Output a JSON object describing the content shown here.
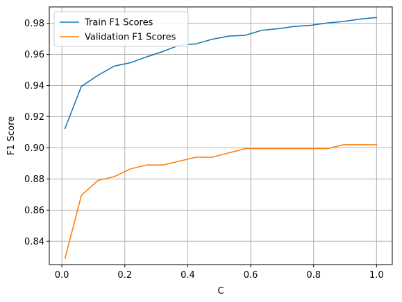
{
  "chart_data": {
    "type": "line",
    "title": "",
    "xlabel": "C",
    "ylabel": "F1 Score",
    "xlim": [
      -0.04,
      1.05
    ],
    "ylim": [
      0.825,
      0.9905
    ],
    "grid": true,
    "legend_position": "upper-left",
    "xticks": [
      0.0,
      0.2,
      0.4,
      0.6,
      0.8,
      1.0
    ],
    "xtick_labels": [
      "0.0",
      "0.2",
      "0.4",
      "0.6",
      "0.8",
      "1.0"
    ],
    "yticks": [
      0.84,
      0.86,
      0.88,
      0.9,
      0.92,
      0.94,
      0.96,
      0.98
    ],
    "ytick_labels": [
      "0.84",
      "0.86",
      "0.88",
      "0.90",
      "0.92",
      "0.94",
      "0.96",
      "0.98"
    ],
    "x": [
      0.01,
      0.0621,
      0.1142,
      0.1663,
      0.2184,
      0.2705,
      0.3226,
      0.3747,
      0.4268,
      0.4789,
      0.5311,
      0.5832,
      0.6353,
      0.6874,
      0.7395,
      0.7916,
      0.8437,
      0.8958,
      0.9479,
      1.0
    ],
    "series": [
      {
        "name": "Train F1 Scores",
        "color": "#1f77b4",
        "values": [
          0.9125,
          0.9395,
          0.9465,
          0.9525,
          0.9547,
          0.9585,
          0.962,
          0.966,
          0.9668,
          0.9698,
          0.9718,
          0.9723,
          0.9755,
          0.9765,
          0.978,
          0.9787,
          0.9802,
          0.9812,
          0.9827,
          0.9837
        ]
      },
      {
        "name": "Validation F1 Scores",
        "color": "#ff7f0e",
        "values": [
          0.829,
          0.8695,
          0.879,
          0.8815,
          0.8865,
          0.889,
          0.889,
          0.8915,
          0.894,
          0.894,
          0.8968,
          0.8995,
          0.8995,
          0.8995,
          0.8995,
          0.8995,
          0.8995,
          0.902,
          0.902,
          0.902
        ]
      }
    ]
  },
  "colors": {
    "grid": "#b0b0b0",
    "axes": "#000000",
    "legend_border": "#cccccc"
  }
}
